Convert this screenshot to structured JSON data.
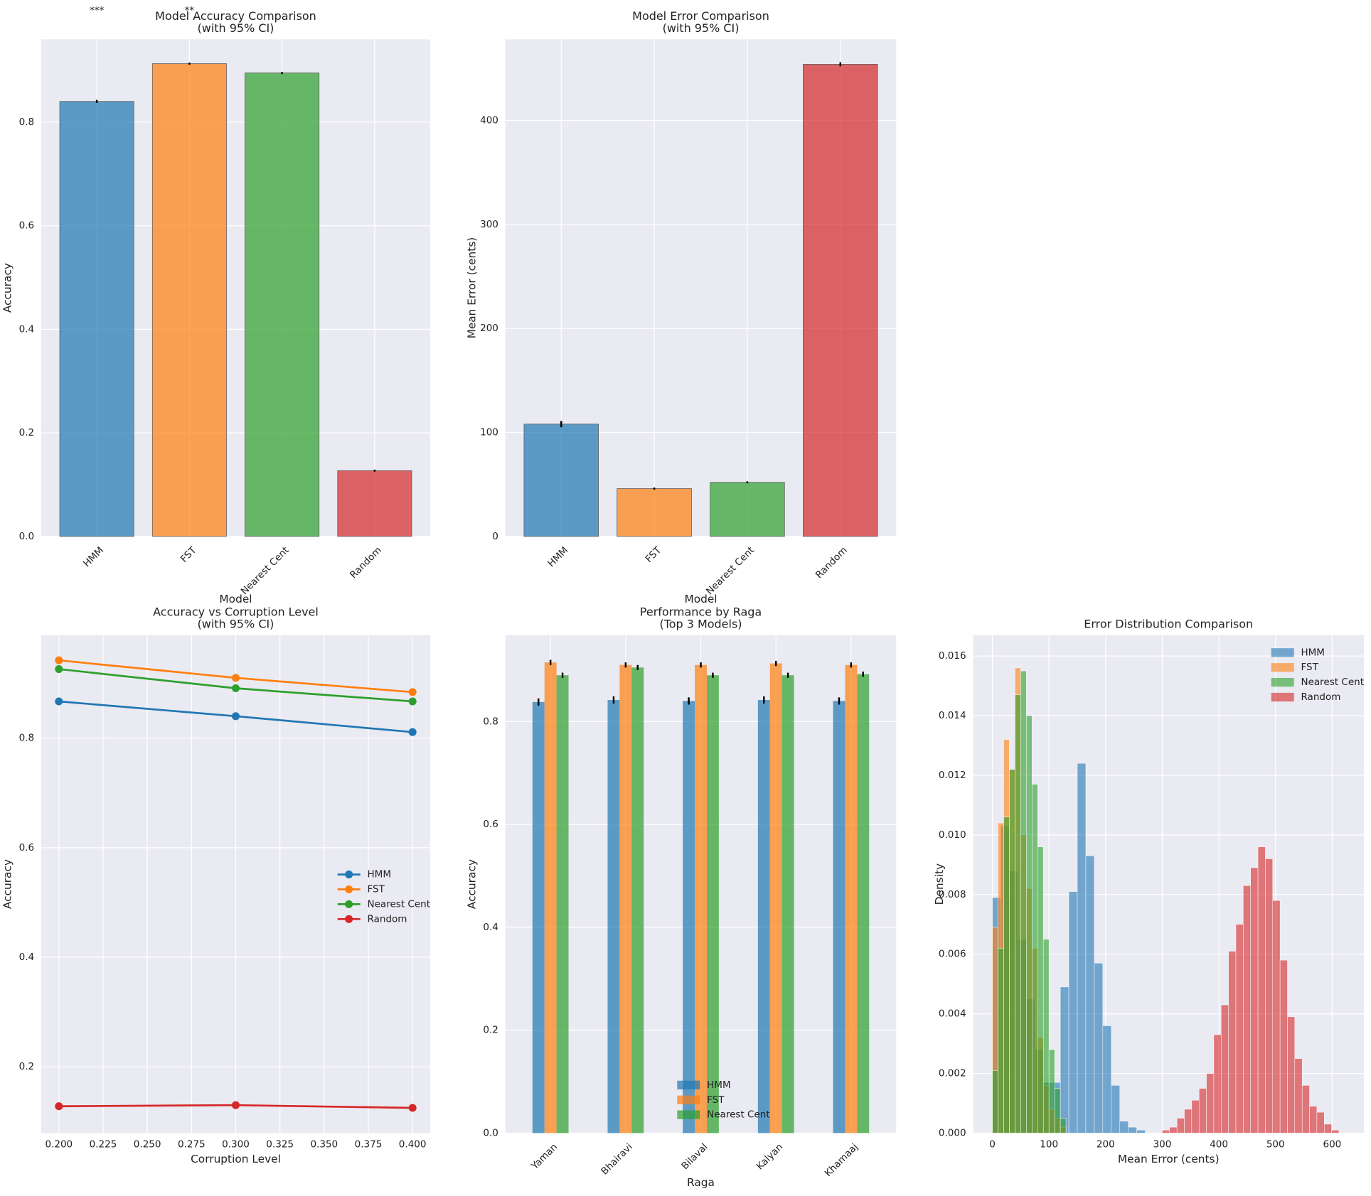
{
  "chart_data": [
    {
      "type": "bar",
      "title": [
        "Model Accuracy Comparison",
        "(with 95% CI)"
      ],
      "xlabel": "Model",
      "ylabel": "Accuracy",
      "categories": [
        "HMM",
        "FST",
        "Nearest Cent",
        "Random"
      ],
      "values": [
        0.84,
        0.913,
        0.895,
        0.127
      ],
      "errors": [
        0.003,
        0.002,
        0.002,
        0.002
      ],
      "colors": [
        "#1f77b4",
        "#ff7f0e",
        "#2ca02c",
        "#d62728"
      ],
      "opacity": 0.7,
      "xtick_rotation": 45,
      "annotations": [
        "***",
        "**"
      ],
      "ylim": [
        0,
        0.96
      ],
      "yticks": [
        {
          "value": 0,
          "label": "0.0"
        },
        0.2,
        0.4,
        0.6,
        0.8
      ],
      "grid": true
    },
    {
      "type": "bar",
      "title": [
        "Model Error Comparison",
        "(with 95% CI)"
      ],
      "xlabel": "Model",
      "ylabel": "Mean Error (cents)",
      "categories": [
        "HMM",
        "FST",
        "Nearest Cent",
        "Random"
      ],
      "values": [
        108,
        46,
        52,
        454
      ],
      "errors": [
        3,
        1,
        1,
        2
      ],
      "colors": [
        "#1f77b4",
        "#ff7f0e",
        "#2ca02c",
        "#d62728"
      ],
      "opacity": 0.7,
      "xtick_rotation": 45,
      "ylim": [
        0,
        478
      ],
      "yticks": [
        0,
        100,
        200,
        300,
        400
      ],
      "grid": true
    },
    {
      "type": "line",
      "title": [
        "Accuracy vs Corruption Level",
        "(with 95% CI)"
      ],
      "xlabel": "Corruption Level",
      "ylabel": "Accuracy",
      "x": [
        0.2,
        0.3,
        0.4
      ],
      "series": [
        {
          "name": "HMM",
          "color": "#1f77b4",
          "values": [
            0.867,
            0.84,
            0.811
          ]
        },
        {
          "name": "FST",
          "color": "#ff7f0e",
          "values": [
            0.942,
            0.91,
            0.884
          ]
        },
        {
          "name": "Nearest Cent",
          "color": "#2ca02c",
          "values": [
            0.926,
            0.891,
            0.867
          ]
        },
        {
          "name": "Random",
          "color": "#d62728",
          "values": [
            0.128,
            0.13,
            0.125
          ]
        }
      ],
      "xlim": [
        0.19,
        0.41
      ],
      "xticks": [
        {
          "value": 0.2,
          "label": "0.200"
        },
        0.225,
        {
          "value": 0.25,
          "label": "0.250"
        },
        0.275,
        {
          "value": 0.3,
          "label": "0.300"
        },
        0.325,
        {
          "value": 0.35,
          "label": "0.350"
        },
        0.375,
        {
          "value": 0.4,
          "label": "0.400"
        }
      ],
      "ylim": [
        0.079,
        0.988
      ],
      "yticks": [
        0.2,
        0.4,
        0.6,
        0.8
      ],
      "grid": true,
      "legend": "center right"
    },
    {
      "type": "bar",
      "title": [
        "Performance by Raga",
        "(Top 3 Models)"
      ],
      "xlabel": "Raga",
      "ylabel": "Accuracy",
      "categories": [
        "Yaman",
        "Bhairavi",
        "Bilaval",
        "Kalyan",
        "Khamaaj"
      ],
      "xtick_rotation": 45,
      "opacity": 0.7,
      "series": [
        {
          "name": "HMM",
          "color": "#1f77b4",
          "values": [
            0.838,
            0.842,
            0.84,
            0.842,
            0.84
          ],
          "errors": [
            0.007,
            0.007,
            0.007,
            0.007,
            0.007
          ]
        },
        {
          "name": "FST",
          "color": "#ff7f0e",
          "values": [
            0.915,
            0.91,
            0.91,
            0.913,
            0.91
          ],
          "errors": [
            0.005,
            0.005,
            0.005,
            0.005,
            0.005
          ]
        },
        {
          "name": "Nearest Cent",
          "color": "#2ca02c",
          "values": [
            0.89,
            0.905,
            0.89,
            0.89,
            0.892
          ],
          "errors": [
            0.005,
            0.005,
            0.005,
            0.005,
            0.005
          ]
        }
      ],
      "ylim": [
        0,
        0.968
      ],
      "yticks": [
        {
          "value": 0,
          "label": "0.0"
        },
        0.2,
        0.4,
        0.6,
        0.8
      ],
      "grid": true,
      "legend": "lower center"
    },
    {
      "type": "histogram",
      "title": [
        "Error Distribution Comparison"
      ],
      "xlabel": "Mean Error (cents)",
      "ylabel": "Density",
      "opacity": 0.6,
      "series": [
        {
          "name": "HMM",
          "color": "#1f77b4",
          "bins": [
            0,
            15,
            30,
            45,
            60,
            75,
            90,
            105,
            120,
            135,
            150,
            165,
            180,
            195,
            210,
            225,
            240,
            255,
            270
          ],
          "values": [
            0.0079,
            0.0103,
            0.0088,
            0.0065,
            0.0045,
            0.0028,
            0.0017,
            0.0017,
            0.0049,
            0.0081,
            0.0124,
            0.0093,
            0.0057,
            0.0036,
            0.0016,
            0.0004,
            0.0002,
            0.0001
          ]
        },
        {
          "name": "FST",
          "color": "#ff7f0e",
          "bins": [
            0,
            10,
            20,
            30,
            40,
            50,
            60,
            70,
            80,
            90,
            100,
            110,
            120,
            130
          ],
          "values": [
            0.0069,
            0.0104,
            0.0132,
            0.0122,
            0.0156,
            0.01,
            0.0082,
            0.0062,
            0.0032,
            0.0016,
            0.0008,
            0.0005,
            0.0002
          ]
        },
        {
          "name": "Nearest Cent",
          "color": "#2ca02c",
          "bins": [
            0,
            10,
            20,
            30,
            40,
            50,
            60,
            70,
            80,
            90,
            100,
            110,
            120,
            130
          ],
          "values": [
            0.0021,
            0.0062,
            0.0106,
            0.0122,
            0.0147,
            0.0155,
            0.014,
            0.0117,
            0.0096,
            0.0065,
            0.0028,
            0.0015,
            0.0005
          ]
        },
        {
          "name": "Random",
          "color": "#d62728",
          "bins": [
            300,
            313,
            326,
            339,
            352,
            365,
            378,
            391,
            404,
            417,
            430,
            443,
            456,
            469,
            482,
            495,
            508,
            521,
            534,
            547,
            560,
            573,
            586,
            599,
            612
          ],
          "values": [
            0.0001,
            0.0002,
            0.0005,
            0.0008,
            0.0011,
            0.0015,
            0.002,
            0.0033,
            0.0043,
            0.0061,
            0.007,
            0.0083,
            0.0089,
            0.0096,
            0.0092,
            0.0078,
            0.0058,
            0.0039,
            0.0025,
            0.0016,
            0.0009,
            0.0007,
            0.0003,
            0.0001
          ]
        }
      ],
      "xlim": [
        -34,
        656
      ],
      "xticks": [
        0,
        100,
        200,
        300,
        400,
        500,
        600
      ],
      "ylim": [
        0,
        0.0167
      ],
      "yticks": [
        {
          "value": 0,
          "label": "0.000"
        },
        0.002,
        0.004,
        0.006,
        0.008,
        {
          "value": 0.01,
          "label": "0.010"
        },
        0.012,
        0.014,
        0.016
      ],
      "grid": true,
      "legend": "upper right"
    }
  ]
}
